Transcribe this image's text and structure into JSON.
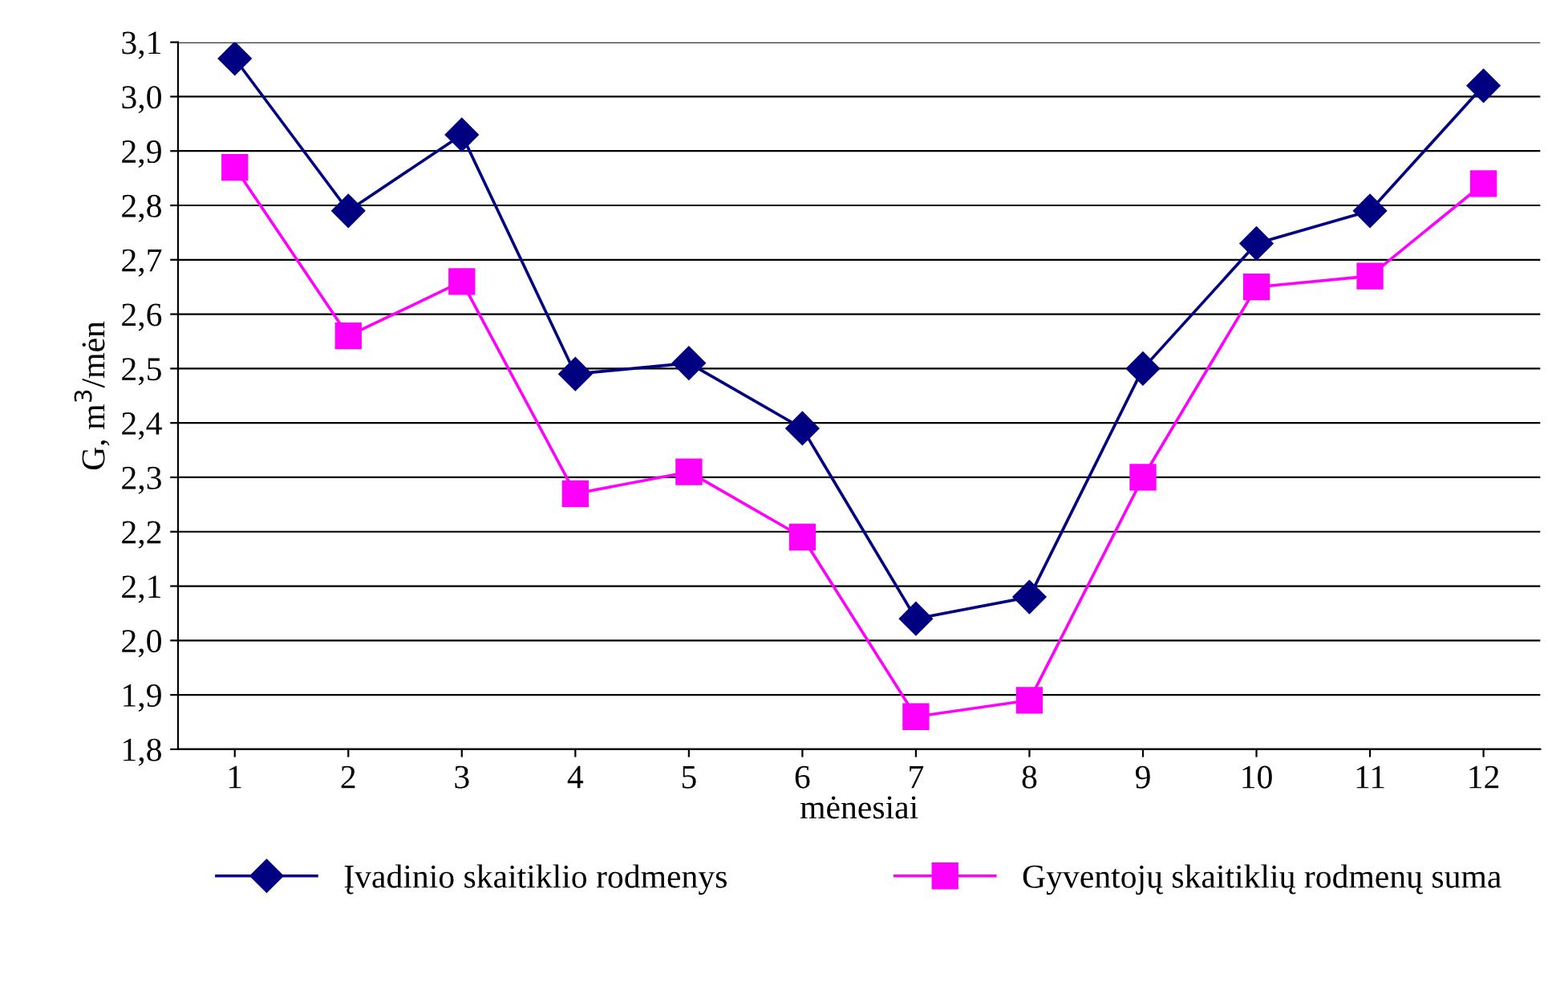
{
  "chart_data": {
    "type": "line",
    "xlabel": "mėnesiai",
    "ylabel": "G, m$^{3}$/mėn",
    "categories": [
      "1",
      "2",
      "3",
      "4",
      "5",
      "6",
      "7",
      "8",
      "9",
      "10",
      "11",
      "12"
    ],
    "series": [
      {
        "name": "Įvadinio skaitiklio rodmenys",
        "color": "#000080",
        "marker": "diamond",
        "values": [
          3.07,
          2.79,
          2.93,
          2.49,
          2.51,
          2.39,
          2.04,
          2.08,
          2.5,
          2.73,
          2.79,
          3.02
        ]
      },
      {
        "name": "Gyventojų skaitiklių rodmenų suma",
        "color": "#ff00ff",
        "marker": "square",
        "values": [
          2.87,
          2.56,
          2.66,
          2.27,
          2.31,
          2.19,
          1.86,
          1.89,
          2.3,
          2.65,
          2.67,
          2.84
        ]
      }
    ],
    "ylim": [
      1.8,
      3.1
    ],
    "yticks": [
      {
        "value": 1.8,
        "label": "1,8"
      },
      {
        "value": 1.9,
        "label": "1,9"
      },
      {
        "value": 2.0,
        "label": "2,0"
      },
      {
        "value": 2.1,
        "label": "2,1"
      },
      {
        "value": 2.2,
        "label": "2,2"
      },
      {
        "value": 2.3,
        "label": "2,3"
      },
      {
        "value": 2.4,
        "label": "2,4"
      },
      {
        "value": 2.5,
        "label": "2,5"
      },
      {
        "value": 2.6,
        "label": "2,6"
      },
      {
        "value": 2.7,
        "label": "2,7"
      },
      {
        "value": 2.8,
        "label": "2,8"
      },
      {
        "value": 2.9,
        "label": "2,9"
      },
      {
        "value": 3.0,
        "label": "3,0"
      },
      {
        "value": 3.1,
        "label": "3,1"
      }
    ],
    "grid": "y",
    "legend": "bottom",
    "line_style": "solid"
  }
}
